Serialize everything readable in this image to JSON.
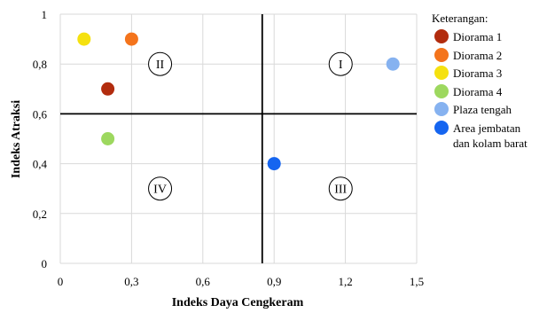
{
  "chart_data": {
    "type": "scatter",
    "xlabel": "Indeks Daya Cengkeram",
    "ylabel": "Indeks Atraksi",
    "xlim": [
      0,
      1.5
    ],
    "ylim": [
      0,
      1
    ],
    "x_ticks": [
      0,
      0.3,
      0.6,
      0.9,
      1.2,
      1.5
    ],
    "x_tick_labels": [
      "0",
      "0,3",
      "0,6",
      "0,9",
      "1,2",
      "1,5"
    ],
    "y_ticks": [
      0,
      0.2,
      0.4,
      0.6,
      0.8,
      1
    ],
    "y_tick_labels": [
      "0",
      "0,2",
      "0,4",
      "0,6",
      "0,8",
      "1"
    ],
    "grid": true,
    "quadrant_lines": {
      "x": 0.85,
      "y": 0.6
    },
    "quadrant_labels": [
      {
        "label": "I",
        "x": 1.18,
        "y": 0.8
      },
      {
        "label": "II",
        "x": 0.42,
        "y": 0.8
      },
      {
        "label": "III",
        "x": 1.18,
        "y": 0.3
      },
      {
        "label": "IV",
        "x": 0.42,
        "y": 0.3
      }
    ],
    "legend_title": "Keterangan:",
    "legend_position": "right",
    "series": [
      {
        "name": "Diorama 1",
        "color": "#b22c0e",
        "x": 0.2,
        "y": 0.7
      },
      {
        "name": "Diorama 2",
        "color": "#f4741c",
        "x": 0.3,
        "y": 0.9
      },
      {
        "name": "Diorama 3",
        "color": "#f5e10f",
        "x": 0.1,
        "y": 0.9
      },
      {
        "name": "Diorama 4",
        "color": "#9dd85f",
        "x": 0.2,
        "y": 0.5
      },
      {
        "name": "Plaza tengah",
        "color": "#86b2f0",
        "x": 1.4,
        "y": 0.8
      },
      {
        "name": [
          "Area jembatan",
          "dan kolam barat"
        ],
        "color": "#1565f0",
        "x": 0.9,
        "y": 0.4
      }
    ]
  }
}
